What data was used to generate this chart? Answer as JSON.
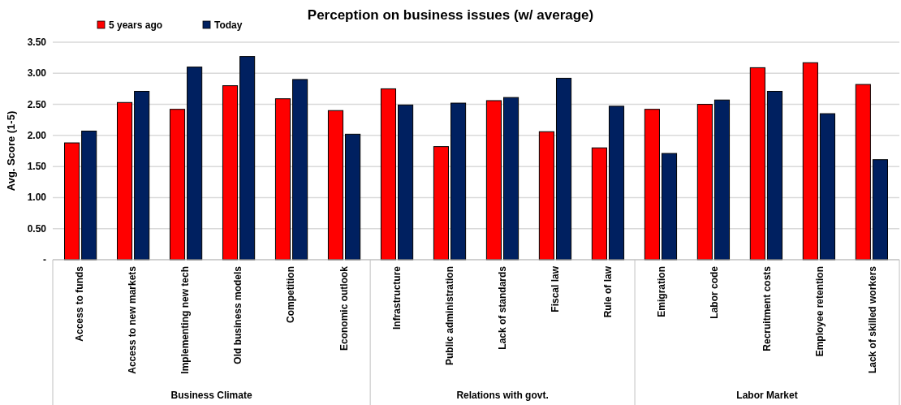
{
  "chart_data": {
    "type": "bar",
    "title": "Perception on business issues (w/ average)",
    "ylabel": "Avg. Score (1-5)",
    "categories": [
      "Access to funds",
      "Access to new markets",
      "Implementing new tech",
      "Old business models",
      "Competition",
      "Economic outlook",
      "Infrastructure",
      "Public administration",
      "Lack of standards",
      "Fiscal law",
      "Rule of law",
      "Emigration",
      "Labor code",
      "Recruitment costs",
      "Employee retention",
      "Lack of skilled workers"
    ],
    "series": [
      {
        "name": "5 years ago",
        "color": "#ff0000",
        "values": [
          1.88,
          2.53,
          2.42,
          2.8,
          2.59,
          2.4,
          2.75,
          1.82,
          2.56,
          2.06,
          1.8,
          2.42,
          2.5,
          3.09,
          3.17,
          2.82
        ]
      },
      {
        "name": "Today",
        "color": "#002060",
        "values": [
          2.07,
          2.71,
          3.1,
          3.27,
          2.9,
          2.02,
          2.49,
          2.52,
          2.61,
          2.92,
          2.47,
          1.71,
          2.57,
          2.71,
          2.35,
          1.61
        ]
      }
    ],
    "ylim": [
      0,
      3.5
    ],
    "yticks": [
      {
        "value": 0,
        "label": "-"
      },
      {
        "value": 0.5,
        "label": "0.50"
      },
      {
        "value": 1,
        "label": "1.00"
      },
      {
        "value": 1.5,
        "label": "1.50"
      },
      {
        "value": 2,
        "label": "2.00"
      },
      {
        "value": 2.5,
        "label": "2.50"
      },
      {
        "value": 3,
        "label": "3.00"
      },
      {
        "value": 3.5,
        "label": "3.50"
      }
    ],
    "grid": "y",
    "legend": "top left",
    "annotations": [
      "Business Climate",
      "Relations with govt.",
      "Labor Market"
    ]
  }
}
